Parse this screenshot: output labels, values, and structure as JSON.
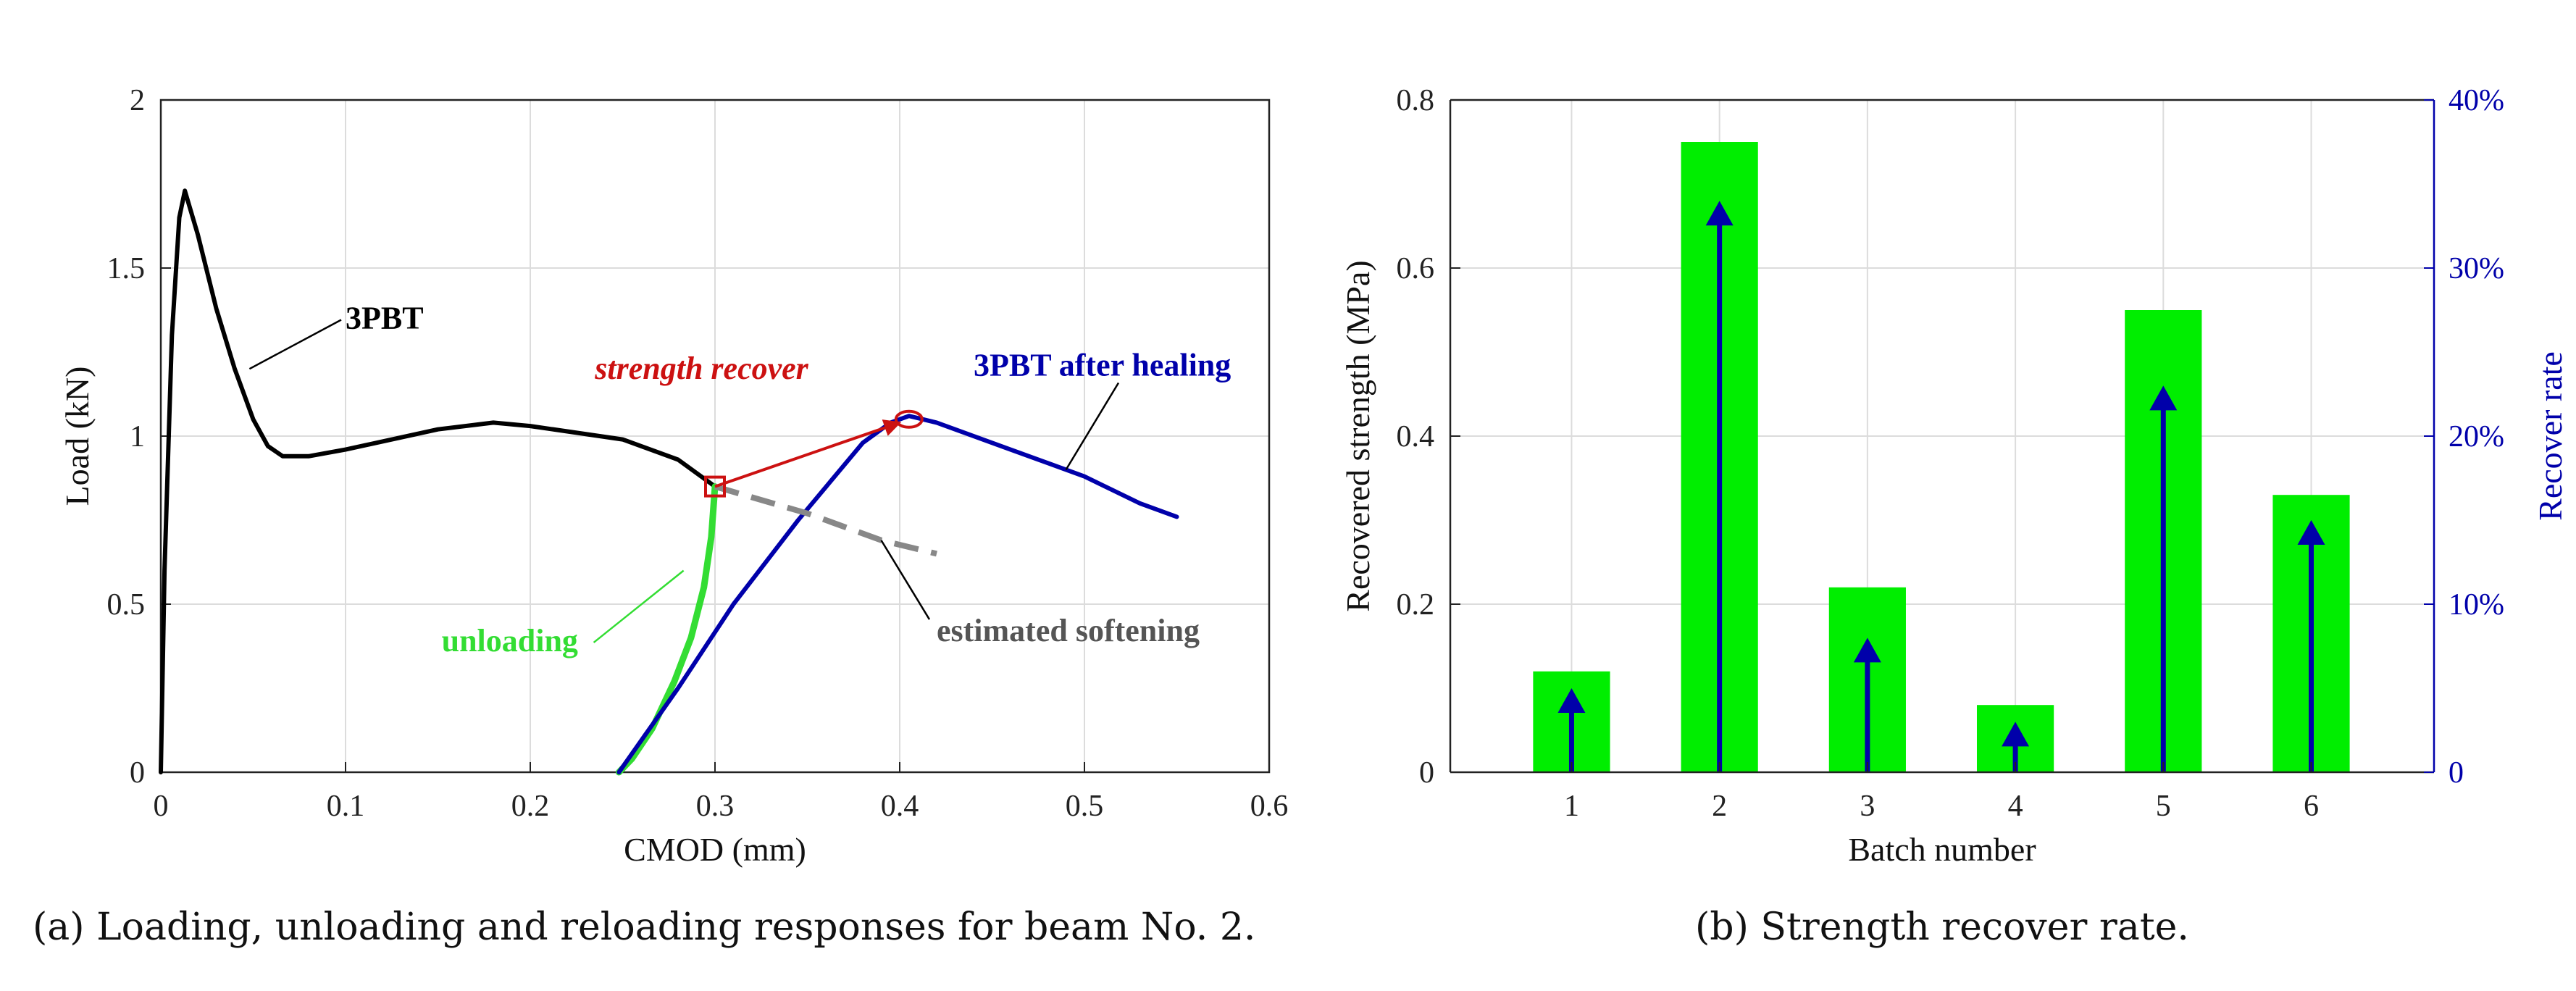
{
  "captions": {
    "a": "(a) Loading, unloading and reloading responses for beam No. 2.",
    "b": "(b) Strength recover rate."
  },
  "colors": {
    "curve_3pbt": "#000000",
    "curve_unloading": "#33dd33",
    "curve_after_healing": "#0000aa",
    "estimated_softening": "#888888",
    "strength_recover": "#cc1111",
    "bar_fill": "#00ee00",
    "right_axis": "#0000aa"
  },
  "chart_data": [
    {
      "type": "line",
      "xlabel": "CMOD (mm)",
      "ylabel": "Load (kN)",
      "xlim": [
        0,
        0.6
      ],
      "ylim": [
        0,
        2
      ],
      "xticks": [
        "0",
        "0.1",
        "0.2",
        "0.3",
        "0.4",
        "0.5",
        "0.6"
      ],
      "yticks": [
        "0",
        "0.5",
        "1",
        "1.5",
        "2"
      ],
      "grid": true,
      "series": [
        {
          "name": "3PBT",
          "style": "solid",
          "points": [
            [
              0.0,
              0.0
            ],
            [
              0.002,
              0.6
            ],
            [
              0.006,
              1.3
            ],
            [
              0.01,
              1.65
            ],
            [
              0.013,
              1.73
            ],
            [
              0.02,
              1.6
            ],
            [
              0.03,
              1.38
            ],
            [
              0.04,
              1.2
            ],
            [
              0.05,
              1.05
            ],
            [
              0.058,
              0.97
            ],
            [
              0.066,
              0.94
            ],
            [
              0.08,
              0.94
            ],
            [
              0.1,
              0.96
            ],
            [
              0.15,
              1.02
            ],
            [
              0.18,
              1.04
            ],
            [
              0.2,
              1.03
            ],
            [
              0.25,
              0.99
            ],
            [
              0.28,
              0.93
            ],
            [
              0.3,
              0.85
            ]
          ]
        },
        {
          "name": "unloading",
          "style": "solid",
          "points": [
            [
              0.3,
              0.85
            ],
            [
              0.298,
              0.7
            ],
            [
              0.294,
              0.55
            ],
            [
              0.287,
              0.4
            ],
            [
              0.278,
              0.27
            ],
            [
              0.266,
              0.13
            ],
            [
              0.255,
              0.04
            ],
            [
              0.248,
              0.0
            ]
          ]
        },
        {
          "name": "3PBT after healing",
          "style": "solid",
          "points": [
            [
              0.248,
              0.0
            ],
            [
              0.28,
              0.25
            ],
            [
              0.31,
              0.5
            ],
            [
              0.345,
              0.75
            ],
            [
              0.38,
              0.98
            ],
            [
              0.395,
              1.04
            ],
            [
              0.405,
              1.06
            ],
            [
              0.42,
              1.04
            ],
            [
              0.45,
              0.98
            ],
            [
              0.48,
              0.92
            ],
            [
              0.5,
              0.88
            ],
            [
              0.53,
              0.8
            ],
            [
              0.55,
              0.76
            ]
          ]
        },
        {
          "name": "estimated softening",
          "style": "dashed",
          "points": [
            [
              0.3,
              0.85
            ],
            [
              0.35,
              0.77
            ],
            [
              0.39,
              0.69
            ],
            [
              0.42,
              0.65
            ]
          ]
        }
      ],
      "markers": [
        {
          "shape": "square",
          "x": 0.3,
          "y": 0.85
        },
        {
          "shape": "ellipse",
          "x": 0.405,
          "y": 1.05
        }
      ],
      "annotations": [
        {
          "text": "3PBT",
          "color": "#000000",
          "italic": false,
          "x": 0.1,
          "y": 1.32,
          "arrow_to": [
            0.048,
            1.2
          ]
        },
        {
          "text": "strength recover",
          "color": "#cc1111",
          "italic": true,
          "x": 0.235,
          "y": 1.17,
          "arrow_from": [
            0.3,
            0.85
          ],
          "arrow_to": [
            0.4,
            1.04
          ]
        },
        {
          "text": "3PBT after healing",
          "color": "#0000aa",
          "italic": false,
          "x": 0.44,
          "y": 1.18,
          "arrow_to": [
            0.49,
            0.9
          ]
        },
        {
          "text": "unloading",
          "color": "#33dd33",
          "italic": false,
          "x": 0.152,
          "y": 0.36,
          "arrow_to": [
            0.283,
            0.6
          ]
        },
        {
          "text": "estimated softening",
          "color": "#555555",
          "italic": false,
          "x": 0.42,
          "y": 0.39,
          "arrow_to": [
            0.39,
            0.69
          ]
        }
      ]
    },
    {
      "type": "bar",
      "xlabel": "Batch number",
      "ylabel": "Recovered strength (MPa)",
      "y2label": "Recover rate",
      "categories": [
        "1",
        "2",
        "3",
        "4",
        "5",
        "6"
      ],
      "values": [
        0.12,
        0.75,
        0.22,
        0.08,
        0.55,
        0.33
      ],
      "ylim": [
        0,
        0.8
      ],
      "yticks": [
        "0",
        "0.2",
        "0.4",
        "0.6",
        "0.8"
      ],
      "y2lim": [
        0,
        0.4
      ],
      "y2ticks": [
        "0",
        "10%",
        "20%",
        "30%",
        "40%"
      ],
      "rate_arrows": [
        0.05,
        0.34,
        0.08,
        0.03,
        0.23,
        0.15
      ],
      "grid": true
    }
  ]
}
